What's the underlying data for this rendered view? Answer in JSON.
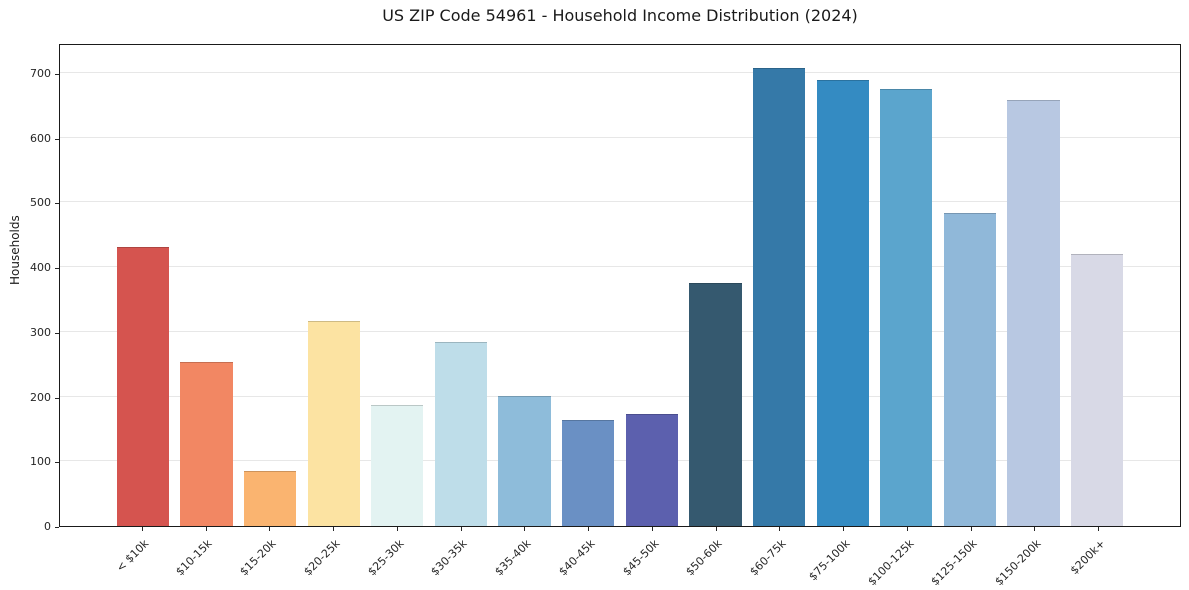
{
  "title": "US ZIP Code 54961 - Household Income Distribution (2024)",
  "ylabel": "Households",
  "chart_data": {
    "type": "bar",
    "title": "US ZIP Code 54961 - Household Income Distribution (2024)",
    "xlabel": "",
    "ylabel": "Households",
    "ylim": [
      0,
      746
    ],
    "yticks": [
      0,
      100,
      200,
      300,
      400,
      500,
      600,
      700
    ],
    "grid": "horizontal-light",
    "legend": "none",
    "categories": [
      "< $10k",
      "$10-15k",
      "$15-20k",
      "$20-25k",
      "$25-30k",
      "$30-35k",
      "$35-40k",
      "$40-45k",
      "$45-50k",
      "$50-60k",
      "$60-75k",
      "$75-100k",
      "$100-125k",
      "$125-150k",
      "$150-200k",
      "$200k+"
    ],
    "values": [
      433,
      254,
      85,
      318,
      187,
      286,
      202,
      164,
      173,
      377,
      710,
      691,
      678,
      486,
      660,
      422
    ],
    "bar_colors": [
      "#d5544f",
      "#f28763",
      "#fab470",
      "#fce3a2",
      "#e3f3f2",
      "#bedde9",
      "#8ebcda",
      "#6a90c4",
      "#5c60ae",
      "#35596f",
      "#3579a8",
      "#348bc2",
      "#5ba5cd",
      "#90b8d9",
      "#b8c8e2",
      "#d8d9e6"
    ],
    "gridline_color": "#e7e7e7",
    "spine_color": "#1a1a1a",
    "background_color": "#ffffff"
  }
}
